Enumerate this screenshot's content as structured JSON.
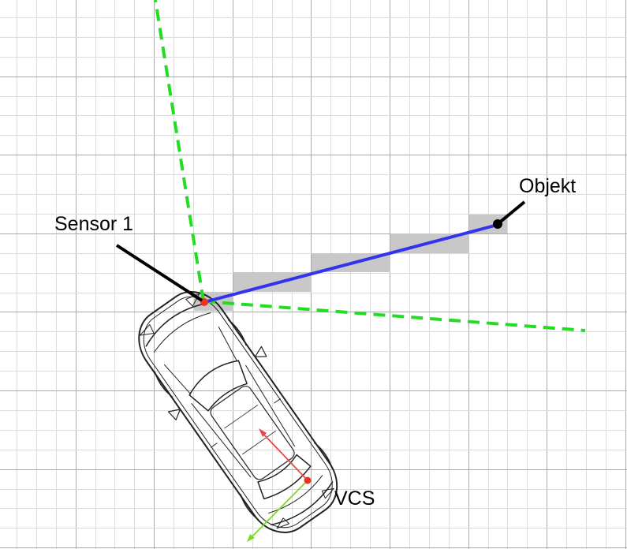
{
  "labels": {
    "sensor": "Sensor 1",
    "object": "Objekt",
    "vcs": "VCS"
  },
  "colors": {
    "grid_minor": "#dcdcdc",
    "grid_major": "#a9a9a9",
    "cell_fill": "#c8c8c8",
    "fov_line": "#22dd22",
    "ray": "#3333ee",
    "sensor_dot": "#ee3322",
    "vcs_x_axis": "#ee4444",
    "vcs_y_axis": "#77dd22",
    "car_outline": "#222222",
    "leader": "#000000"
  },
  "icons": [
    "car-top-view-icon"
  ]
}
